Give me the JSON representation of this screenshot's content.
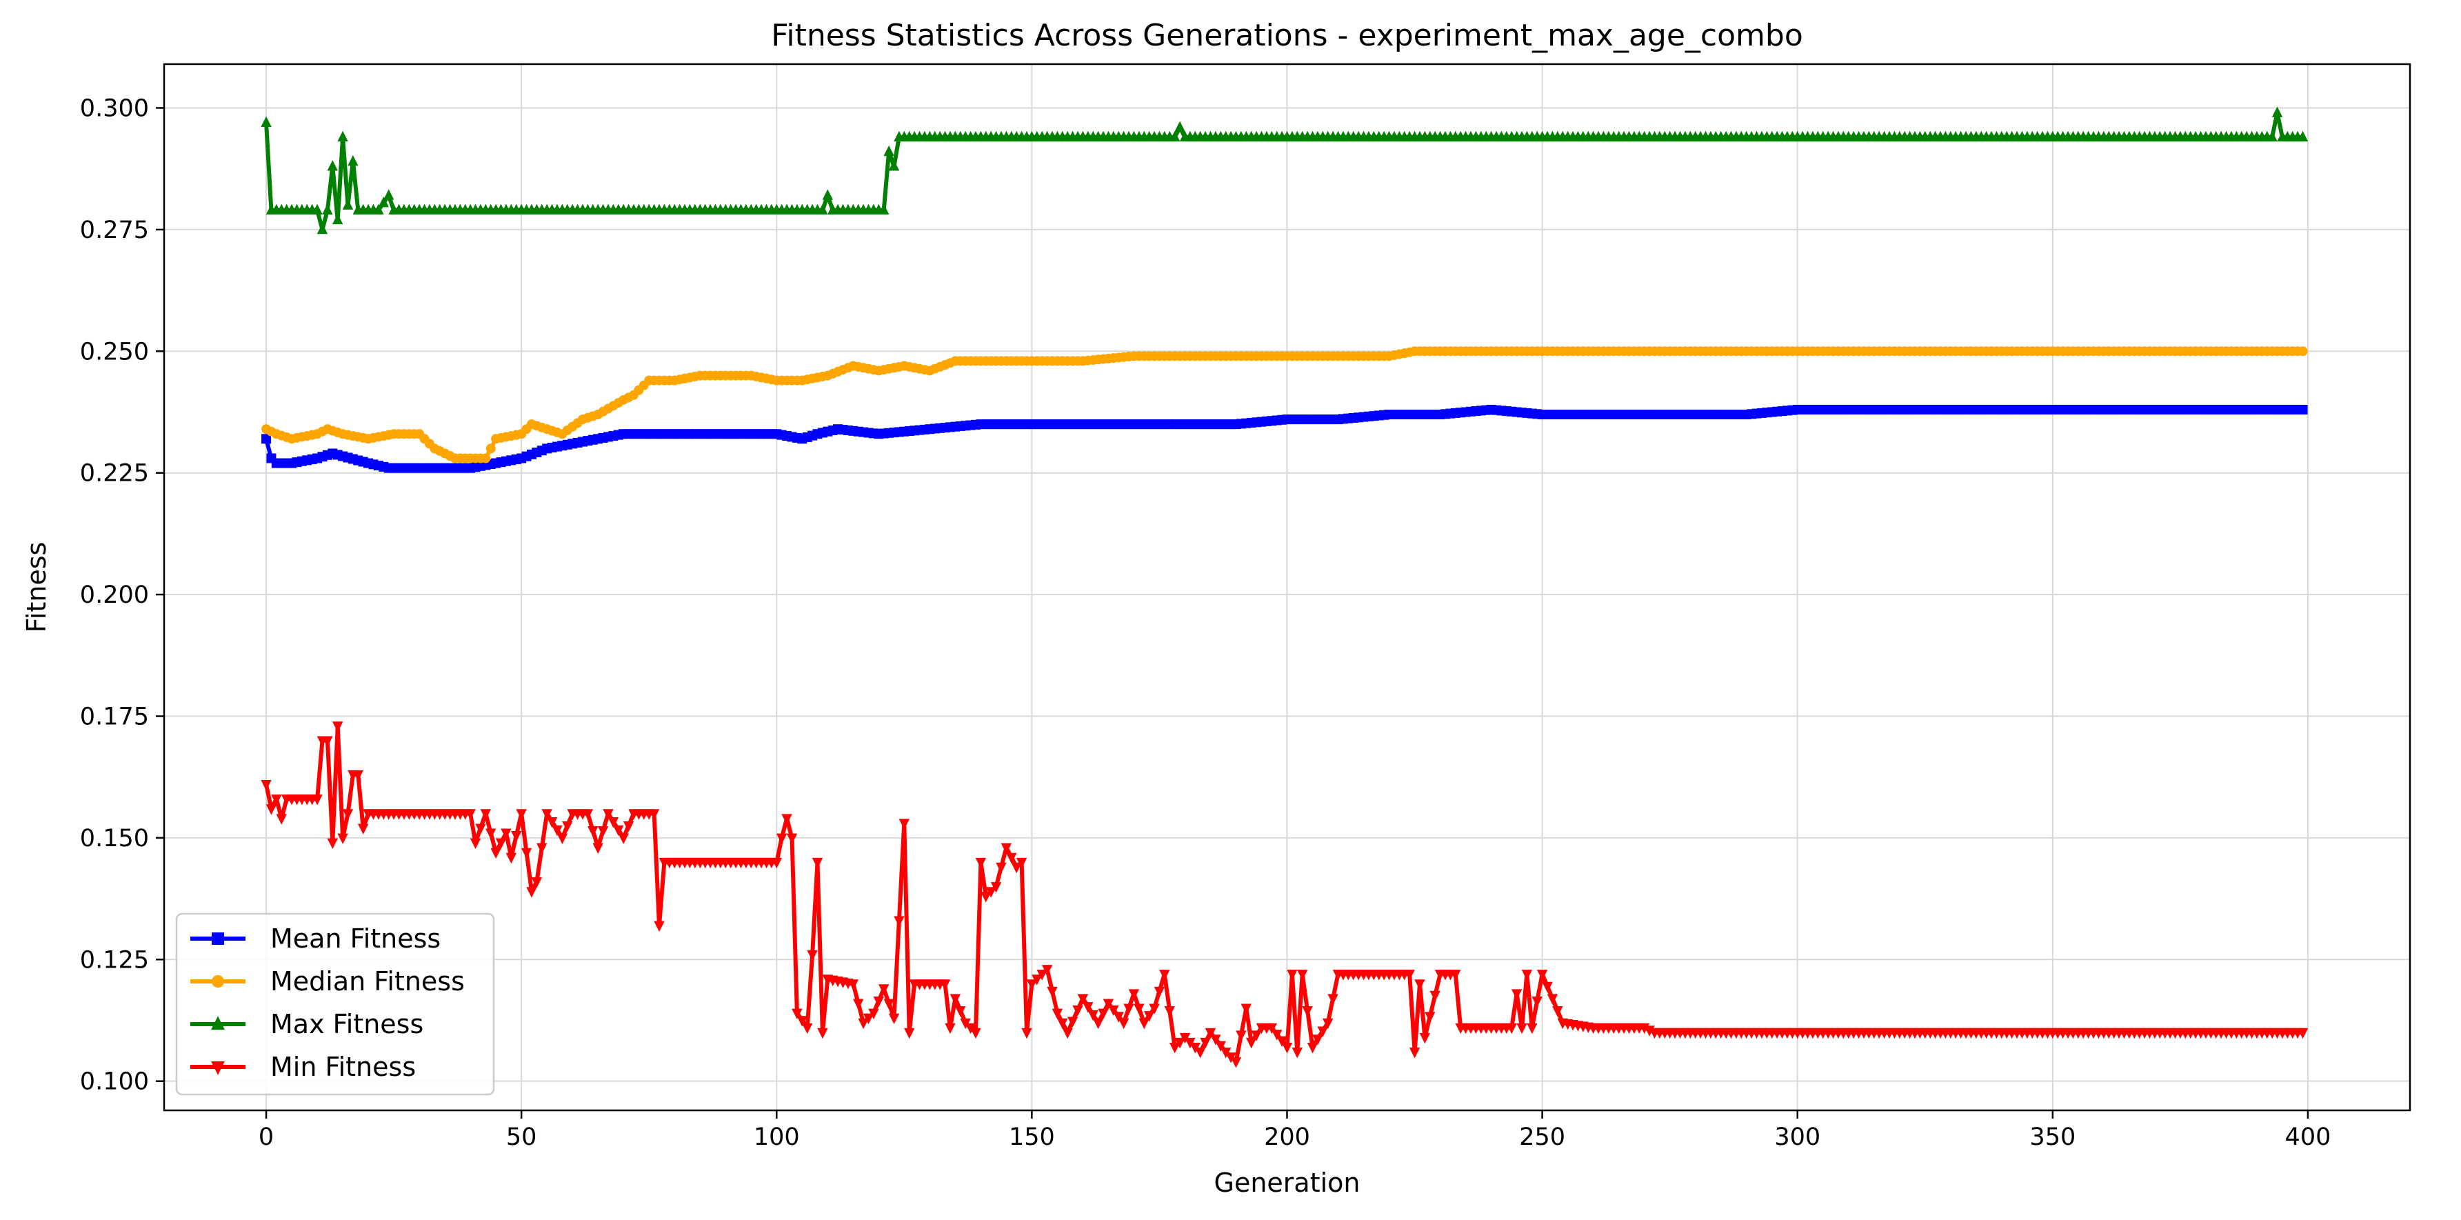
{
  "chart_data": {
    "type": "line",
    "title": "Fitness Statistics Across Generations - experiment_max_age_combo",
    "xlabel": "Generation",
    "ylabel": "Fitness",
    "xlim": [
      -20,
      420
    ],
    "ylim": [
      0.094,
      0.309
    ],
    "xticks": [
      0,
      50,
      100,
      150,
      200,
      250,
      300,
      350,
      400
    ],
    "yticks": [
      0.1,
      0.125,
      0.15,
      0.175,
      0.2,
      0.225,
      0.25,
      0.275,
      0.3
    ],
    "ytick_labels": [
      "0.100",
      "0.125",
      "0.150",
      "0.175",
      "0.200",
      "0.225",
      "0.250",
      "0.275",
      "0.300"
    ],
    "grid": true,
    "legend_position": "lower-left",
    "x_start": 0,
    "x_end": 399,
    "series": [
      {
        "name": "Mean Fitness",
        "color": "#0000ff",
        "marker": "square",
        "points": [
          [
            0,
            0.232
          ],
          [
            1,
            0.228
          ],
          [
            2,
            0.227
          ],
          [
            5,
            0.227
          ],
          [
            10,
            0.228
          ],
          [
            13,
            0.229
          ],
          [
            20,
            0.227
          ],
          [
            24,
            0.226
          ],
          [
            30,
            0.226
          ],
          [
            35,
            0.226
          ],
          [
            40,
            0.226
          ],
          [
            45,
            0.227
          ],
          [
            50,
            0.228
          ],
          [
            55,
            0.23
          ],
          [
            60,
            0.231
          ],
          [
            65,
            0.232
          ],
          [
            70,
            0.233
          ],
          [
            75,
            0.233
          ],
          [
            80,
            0.233
          ],
          [
            90,
            0.233
          ],
          [
            100,
            0.233
          ],
          [
            105,
            0.232
          ],
          [
            108,
            0.233
          ],
          [
            112,
            0.234
          ],
          [
            120,
            0.233
          ],
          [
            130,
            0.234
          ],
          [
            140,
            0.235
          ],
          [
            150,
            0.235
          ],
          [
            160,
            0.235
          ],
          [
            170,
            0.235
          ],
          [
            180,
            0.235
          ],
          [
            190,
            0.235
          ],
          [
            200,
            0.236
          ],
          [
            210,
            0.236
          ],
          [
            220,
            0.237
          ],
          [
            230,
            0.237
          ],
          [
            240,
            0.238
          ],
          [
            250,
            0.237
          ],
          [
            260,
            0.237
          ],
          [
            270,
            0.237
          ],
          [
            280,
            0.237
          ],
          [
            290,
            0.237
          ],
          [
            300,
            0.238
          ],
          [
            310,
            0.238
          ],
          [
            320,
            0.238
          ],
          [
            330,
            0.238
          ],
          [
            340,
            0.238
          ],
          [
            350,
            0.238
          ],
          [
            360,
            0.238
          ],
          [
            370,
            0.238
          ],
          [
            380,
            0.238
          ],
          [
            390,
            0.238
          ],
          [
            399,
            0.238
          ]
        ]
      },
      {
        "name": "Median Fitness",
        "color": "#ffa500",
        "marker": "circle",
        "points": [
          [
            0,
            0.234
          ],
          [
            2,
            0.233
          ],
          [
            5,
            0.232
          ],
          [
            10,
            0.233
          ],
          [
            12,
            0.234
          ],
          [
            15,
            0.233
          ],
          [
            20,
            0.232
          ],
          [
            25,
            0.233
          ],
          [
            30,
            0.233
          ],
          [
            33,
            0.23
          ],
          [
            37,
            0.228
          ],
          [
            40,
            0.228
          ],
          [
            43,
            0.228
          ],
          [
            45,
            0.232
          ],
          [
            50,
            0.233
          ],
          [
            52,
            0.235
          ],
          [
            55,
            0.234
          ],
          [
            58,
            0.233
          ],
          [
            62,
            0.236
          ],
          [
            65,
            0.237
          ],
          [
            70,
            0.24
          ],
          [
            72,
            0.241
          ],
          [
            75,
            0.244
          ],
          [
            80,
            0.244
          ],
          [
            85,
            0.245
          ],
          [
            90,
            0.245
          ],
          [
            95,
            0.245
          ],
          [
            100,
            0.244
          ],
          [
            105,
            0.244
          ],
          [
            110,
            0.245
          ],
          [
            115,
            0.247
          ],
          [
            120,
            0.246
          ],
          [
            125,
            0.247
          ],
          [
            130,
            0.246
          ],
          [
            135,
            0.248
          ],
          [
            140,
            0.248
          ],
          [
            150,
            0.248
          ],
          [
            160,
            0.248
          ],
          [
            170,
            0.249
          ],
          [
            180,
            0.249
          ],
          [
            190,
            0.249
          ],
          [
            200,
            0.249
          ],
          [
            210,
            0.249
          ],
          [
            220,
            0.249
          ],
          [
            225,
            0.25
          ],
          [
            240,
            0.25
          ],
          [
            260,
            0.25
          ],
          [
            300,
            0.25
          ],
          [
            350,
            0.25
          ],
          [
            399,
            0.25
          ]
        ]
      },
      {
        "name": "Max Fitness",
        "color": "#008000",
        "marker": "triangle-up",
        "points": [
          [
            0,
            0.297
          ],
          [
            1,
            0.279
          ],
          [
            5,
            0.279
          ],
          [
            10,
            0.279
          ],
          [
            11,
            0.275
          ],
          [
            12,
            0.279
          ],
          [
            13,
            0.288
          ],
          [
            14,
            0.277
          ],
          [
            15,
            0.294
          ],
          [
            16,
            0.28
          ],
          [
            17,
            0.289
          ],
          [
            18,
            0.279
          ],
          [
            22,
            0.279
          ],
          [
            24,
            0.282
          ],
          [
            25,
            0.279
          ],
          [
            40,
            0.279
          ],
          [
            41,
            0.279
          ],
          [
            60,
            0.279
          ],
          [
            80,
            0.279
          ],
          [
            100,
            0.279
          ],
          [
            109,
            0.279
          ],
          [
            110,
            0.282
          ],
          [
            111,
            0.279
          ],
          [
            121,
            0.279
          ],
          [
            122,
            0.291
          ],
          [
            123,
            0.288
          ],
          [
            124,
            0.294
          ],
          [
            150,
            0.294
          ],
          [
            178,
            0.294
          ],
          [
            179,
            0.296
          ],
          [
            180,
            0.294
          ],
          [
            250,
            0.294
          ],
          [
            300,
            0.294
          ],
          [
            393,
            0.294
          ],
          [
            394,
            0.299
          ],
          [
            395,
            0.294
          ],
          [
            399,
            0.294
          ]
        ]
      },
      {
        "name": "Min Fitness",
        "color": "#ff0000",
        "marker": "triangle-down",
        "points": [
          [
            0,
            0.161
          ],
          [
            1,
            0.156
          ],
          [
            2,
            0.158
          ],
          [
            3,
            0.154
          ],
          [
            4,
            0.158
          ],
          [
            10,
            0.158
          ],
          [
            11,
            0.17
          ],
          [
            12,
            0.17
          ],
          [
            13,
            0.149
          ],
          [
            14,
            0.173
          ],
          [
            15,
            0.15
          ],
          [
            16,
            0.155
          ],
          [
            17,
            0.163
          ],
          [
            18,
            0.163
          ],
          [
            19,
            0.152
          ],
          [
            20,
            0.155
          ],
          [
            40,
            0.155
          ],
          [
            41,
            0.149
          ],
          [
            43,
            0.155
          ],
          [
            45,
            0.147
          ],
          [
            47,
            0.151
          ],
          [
            48,
            0.146
          ],
          [
            50,
            0.155
          ],
          [
            52,
            0.139
          ],
          [
            53,
            0.141
          ],
          [
            55,
            0.155
          ],
          [
            58,
            0.15
          ],
          [
            60,
            0.155
          ],
          [
            63,
            0.155
          ],
          [
            65,
            0.148
          ],
          [
            67,
            0.155
          ],
          [
            70,
            0.15
          ],
          [
            72,
            0.155
          ],
          [
            75,
            0.155
          ],
          [
            76,
            0.155
          ],
          [
            77,
            0.132
          ],
          [
            78,
            0.145
          ],
          [
            100,
            0.145
          ],
          [
            101,
            0.15
          ],
          [
            102,
            0.154
          ],
          [
            103,
            0.15
          ],
          [
            104,
            0.114
          ],
          [
            106,
            0.111
          ],
          [
            107,
            0.126
          ],
          [
            108,
            0.145
          ],
          [
            109,
            0.11
          ],
          [
            110,
            0.121
          ],
          [
            115,
            0.12
          ],
          [
            117,
            0.112
          ],
          [
            119,
            0.114
          ],
          [
            121,
            0.119
          ],
          [
            123,
            0.113
          ],
          [
            124,
            0.133
          ],
          [
            125,
            0.153
          ],
          [
            126,
            0.11
          ],
          [
            127,
            0.12
          ],
          [
            133,
            0.12
          ],
          [
            134,
            0.111
          ],
          [
            135,
            0.117
          ],
          [
            137,
            0.112
          ],
          [
            139,
            0.11
          ],
          [
            140,
            0.145
          ],
          [
            141,
            0.138
          ],
          [
            143,
            0.14
          ],
          [
            145,
            0.148
          ],
          [
            147,
            0.144
          ],
          [
            148,
            0.145
          ],
          [
            149,
            0.11
          ],
          [
            150,
            0.12
          ],
          [
            153,
            0.123
          ],
          [
            155,
            0.114
          ],
          [
            157,
            0.11
          ],
          [
            160,
            0.117
          ],
          [
            163,
            0.112
          ],
          [
            165,
            0.116
          ],
          [
            168,
            0.112
          ],
          [
            170,
            0.118
          ],
          [
            172,
            0.112
          ],
          [
            174,
            0.115
          ],
          [
            176,
            0.122
          ],
          [
            178,
            0.107
          ],
          [
            180,
            0.109
          ],
          [
            183,
            0.106
          ],
          [
            185,
            0.11
          ],
          [
            188,
            0.106
          ],
          [
            190,
            0.104
          ],
          [
            192,
            0.115
          ],
          [
            193,
            0.108
          ],
          [
            195,
            0.111
          ],
          [
            197,
            0.111
          ],
          [
            200,
            0.107
          ],
          [
            201,
            0.122
          ],
          [
            202,
            0.106
          ],
          [
            203,
            0.122
          ],
          [
            205,
            0.107
          ],
          [
            208,
            0.112
          ],
          [
            210,
            0.122
          ],
          [
            215,
            0.122
          ],
          [
            220,
            0.122
          ],
          [
            224,
            0.122
          ],
          [
            225,
            0.106
          ],
          [
            226,
            0.12
          ],
          [
            227,
            0.109
          ],
          [
            230,
            0.122
          ],
          [
            233,
            0.122
          ],
          [
            234,
            0.111
          ],
          [
            240,
            0.111
          ],
          [
            244,
            0.111
          ],
          [
            245,
            0.118
          ],
          [
            246,
            0.111
          ],
          [
            247,
            0.122
          ],
          [
            248,
            0.111
          ],
          [
            250,
            0.122
          ],
          [
            252,
            0.117
          ],
          [
            254,
            0.112
          ],
          [
            260,
            0.111
          ],
          [
            265,
            0.111
          ],
          [
            270,
            0.111
          ],
          [
            272,
            0.11
          ],
          [
            280,
            0.11
          ],
          [
            300,
            0.11
          ],
          [
            350,
            0.11
          ],
          [
            399,
            0.11
          ]
        ]
      }
    ]
  }
}
